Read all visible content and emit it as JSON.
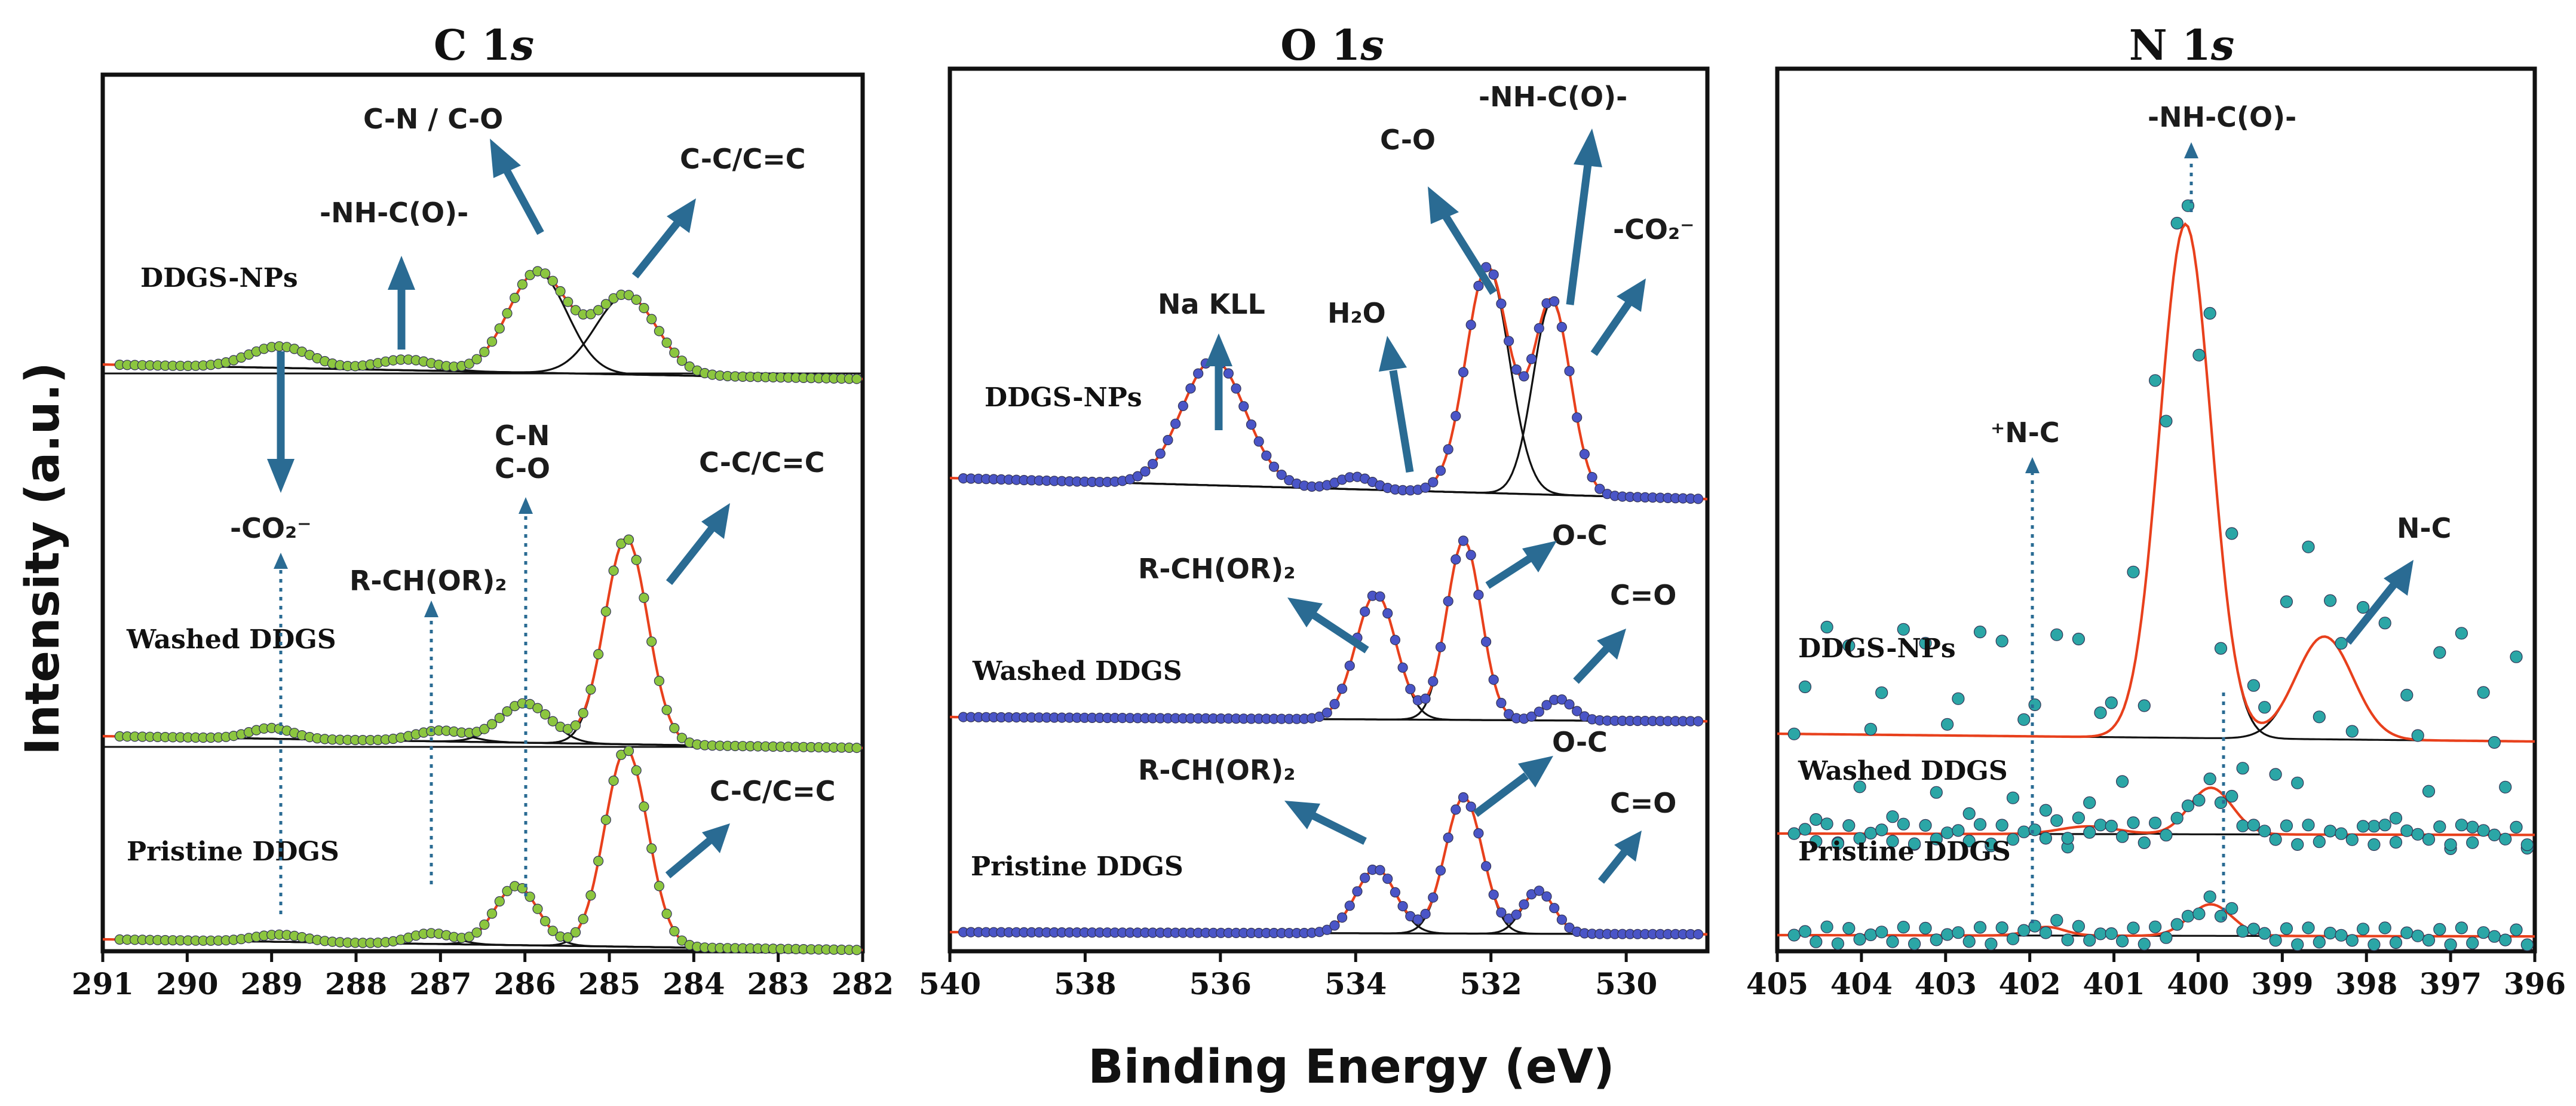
{
  "figure": {
    "ylabel": "Intensity (a.u.)",
    "xlabel": "Binding Energy (eV)",
    "colors": {
      "fit": "#e8401c",
      "component": "#111111",
      "arrow": "#2a6b93"
    }
  },
  "chart_data": [
    {
      "type": "line",
      "title": "C 1s",
      "title_element": "C 1",
      "title_orbital": "s",
      "xlabel": "Binding Energy (eV)",
      "ylabel": "Intensity (a.u.)",
      "xlim": [
        291,
        282
      ],
      "xticks": [
        291,
        290,
        289,
        288,
        287,
        286,
        285,
        284,
        283,
        282
      ],
      "marker_color": "#8cc63f",
      "series": [
        {
          "name": "DDGS-NPs",
          "baseline": 0.27,
          "peaks": [
            {
              "center": 284.8,
              "height": 0.44,
              "width": 0.85
            },
            {
              "center": 285.85,
              "height": 0.56,
              "width": 0.82
            },
            {
              "center": 287.4,
              "height": 0.06,
              "width": 0.8
            },
            {
              "center": 288.9,
              "height": 0.12,
              "width": 0.85
            }
          ]
        },
        {
          "name": "Washed DDGS",
          "baseline": 0.22,
          "peaks": [
            {
              "center": 284.8,
              "height": 1.15,
              "width": 0.6
            },
            {
              "center": 286.0,
              "height": 0.22,
              "width": 0.7
            },
            {
              "center": 287.0,
              "height": 0.06,
              "width": 0.7
            },
            {
              "center": 289.0,
              "height": 0.06,
              "width": 0.6
            }
          ]
        },
        {
          "name": "Pristine DDGS",
          "baseline": 0.2,
          "peaks": [
            {
              "center": 284.8,
              "height": 1.1,
              "width": 0.6
            },
            {
              "center": 286.1,
              "height": 0.33,
              "width": 0.6
            },
            {
              "center": 287.1,
              "height": 0.06,
              "width": 0.6
            },
            {
              "center": 288.9,
              "height": 0.04,
              "width": 0.7
            }
          ]
        }
      ],
      "annotations": [
        "C-N / C-O",
        "-NH-C(O)-",
        "C-C/C=C",
        "-CO₂⁻",
        "C-N",
        "C-O",
        "C-C/C=C",
        "R-CH(OR)₂",
        "C-C/C=C"
      ]
    },
    {
      "type": "line",
      "title": "O 1s",
      "title_element": "O 1",
      "title_orbital": "s",
      "xlabel": "Binding Energy (eV)",
      "ylabel": "Intensity (a.u.)",
      "xlim": [
        540,
        528.8
      ],
      "xticks": [
        540,
        538,
        536,
        534,
        532,
        530
      ],
      "marker_color": "#4a55c7",
      "series": [
        {
          "name": "DDGS-NPs",
          "baseline": 0.28,
          "peaks": [
            {
              "center": 536.1,
              "height": 0.5,
              "width": 1.1
            },
            {
              "center": 534.0,
              "height": 0.05,
              "width": 0.6
            },
            {
              "center": 532.05,
              "height": 0.9,
              "width": 0.75
            },
            {
              "center": 531.1,
              "height": 0.77,
              "width": 0.65
            }
          ]
        },
        {
          "name": "Washed DDGS",
          "baseline": 0.08,
          "peaks": [
            {
              "center": 533.7,
              "height": 0.7,
              "width": 0.7
            },
            {
              "center": 532.4,
              "height": 1.0,
              "width": 0.6
            },
            {
              "center": 531.0,
              "height": 0.12,
              "width": 0.5
            }
          ]
        },
        {
          "name": "Pristine DDGS",
          "baseline": 0.05,
          "peaks": [
            {
              "center": 533.7,
              "height": 0.45,
              "width": 0.7
            },
            {
              "center": 532.4,
              "height": 0.95,
              "width": 0.65
            },
            {
              "center": 531.3,
              "height": 0.3,
              "width": 0.55
            }
          ]
        }
      ],
      "annotations": [
        "C-O",
        "-NH-C(O)-",
        "-CO₂⁻",
        "Na KLL",
        "H₂O",
        "R-CH(OR)₂",
        "O-C",
        "C=O",
        "R-CH(OR)₂",
        "O-C",
        "C=O"
      ]
    },
    {
      "type": "line",
      "title": "N 1s",
      "title_element": "N 1",
      "title_orbital": "s",
      "xlabel": "Binding Energy (eV)",
      "ylabel": "Intensity (a.u.)",
      "xlim": [
        405,
        396
      ],
      "xticks": [
        405,
        404,
        403,
        402,
        401,
        400,
        399,
        398,
        397,
        396
      ],
      "marker_color": "#2ba6a6",
      "series": [
        {
          "name": "DDGS-NPs",
          "baseline": 0.05,
          "peaks": [
            {
              "center": 400.15,
              "height": 1.0,
              "width": 0.72
            },
            {
              "center": 398.5,
              "height": 0.2,
              "width": 0.8
            }
          ]
        },
        {
          "name": "Washed DDGS",
          "baseline": 0.03,
          "peaks": [
            {
              "center": 399.85,
              "height": 0.3,
              "width": 0.6
            },
            {
              "center": 401.3,
              "height": 0.05,
              "width": 0.8
            }
          ]
        },
        {
          "name": "Pristine DDGS",
          "baseline": 0.03,
          "peaks": [
            {
              "center": 399.85,
              "height": 0.22,
              "width": 0.6
            },
            {
              "center": 401.8,
              "height": 0.06,
              "width": 0.5
            }
          ]
        }
      ],
      "annotations": [
        "-NH-C(O)-",
        "⁺N-C",
        "N-C"
      ]
    }
  ]
}
